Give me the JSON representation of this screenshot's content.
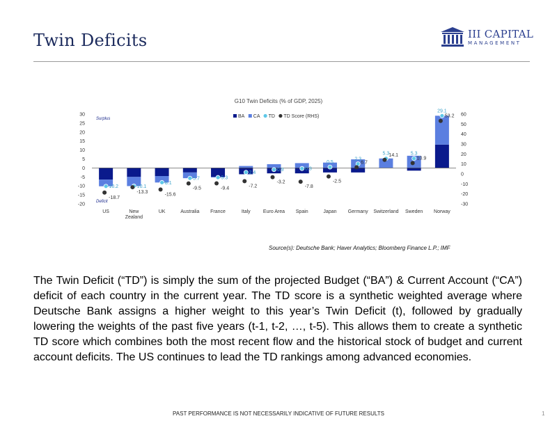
{
  "page": {
    "title": "Twin Deficits",
    "logo": {
      "text": "III CAPITAL",
      "subtext": "MANAGEMENT"
    },
    "source": "Source(s): Deutsche Bank; Haver Analytics; Bloomberg Finance L.P.; IMF",
    "paragraph": "The Twin Deficit (“TD”) is simply the sum of the projected Budget (“BA”) & Current Account (“CA”) deficit of each country in the current year. The TD score is a synthetic weighted average where Deutsche Bank assigns a higher weight to this year’s Twin Deficit (t), followed by gradually lowering the weights of the past five years (t-1, t-2, …, t-5). This allows them to create a synthetic TD score which combines both the most recent flow and the historical stock of budget and current account deficits. The US continues to lead the TD rankings among advanced economies.",
    "footer": "PAST PERFORMANCE IS NOT NECESSARILY INDICATIVE OF FUTURE RESULTS",
    "page_number": "1"
  },
  "colors": {
    "ba": "#0a1a8c",
    "ca": "#5b7fe0",
    "td": "#5ec8e8",
    "td_score": "#333333",
    "title": "#1b2a5c"
  },
  "chart_data": {
    "type": "bar",
    "title": "G10 Twin Deficits (% of GDP, 2025)",
    "categories": [
      "US",
      "New Zealand",
      "UK",
      "Australia",
      "France",
      "Italy",
      "Euro Area",
      "Spain",
      "Japan",
      "Germany",
      "Switzerland",
      "Sweden",
      "Norway"
    ],
    "series": [
      {
        "name": "BA",
        "axis": "left",
        "values": [
          -6.5,
          -5.0,
          -4.5,
          -2.5,
          -5.0,
          -3.5,
          -3.0,
          -3.0,
          -2.5,
          -2.5,
          0.0,
          -1.5,
          13.0
        ]
      },
      {
        "name": "CA",
        "axis": "left",
        "values": [
          -3.7,
          -5.1,
          -3.6,
          -3.2,
          -0.3,
          1.1,
          2.1,
          2.7,
          3.0,
          4.8,
          5.3,
          6.8,
          16.1
        ]
      },
      {
        "name": "TD",
        "axis": "left",
        "values": [
          -10.2,
          -10.1,
          -8.1,
          -5.7,
          -5.3,
          -2.4,
          -0.9,
          -0.3,
          0.5,
          2.3,
          5.3,
          5.3,
          29.1
        ]
      },
      {
        "name": "TD Score (RHS)",
        "axis": "right",
        "values": [
          -18.7,
          -13.3,
          -15.6,
          -9.5,
          -9.4,
          -7.2,
          -3.2,
          -7.8,
          -2.5,
          6.7,
          14.1,
          10.9,
          53.2
        ]
      }
    ],
    "ylim_left": [
      -20,
      30
    ],
    "yticks_left": [
      -20,
      -15,
      -10,
      -5,
      0,
      5,
      10,
      15,
      20,
      25,
      30
    ],
    "ylim_right": [
      -30,
      60
    ],
    "yticks_right": [
      -30,
      -20,
      -10,
      0,
      10,
      20,
      30,
      40,
      50,
      60
    ],
    "annotations": {
      "top_left": "Surplus",
      "bottom_left": "Deficit"
    },
    "legend": "top-center",
    "grid": false
  }
}
